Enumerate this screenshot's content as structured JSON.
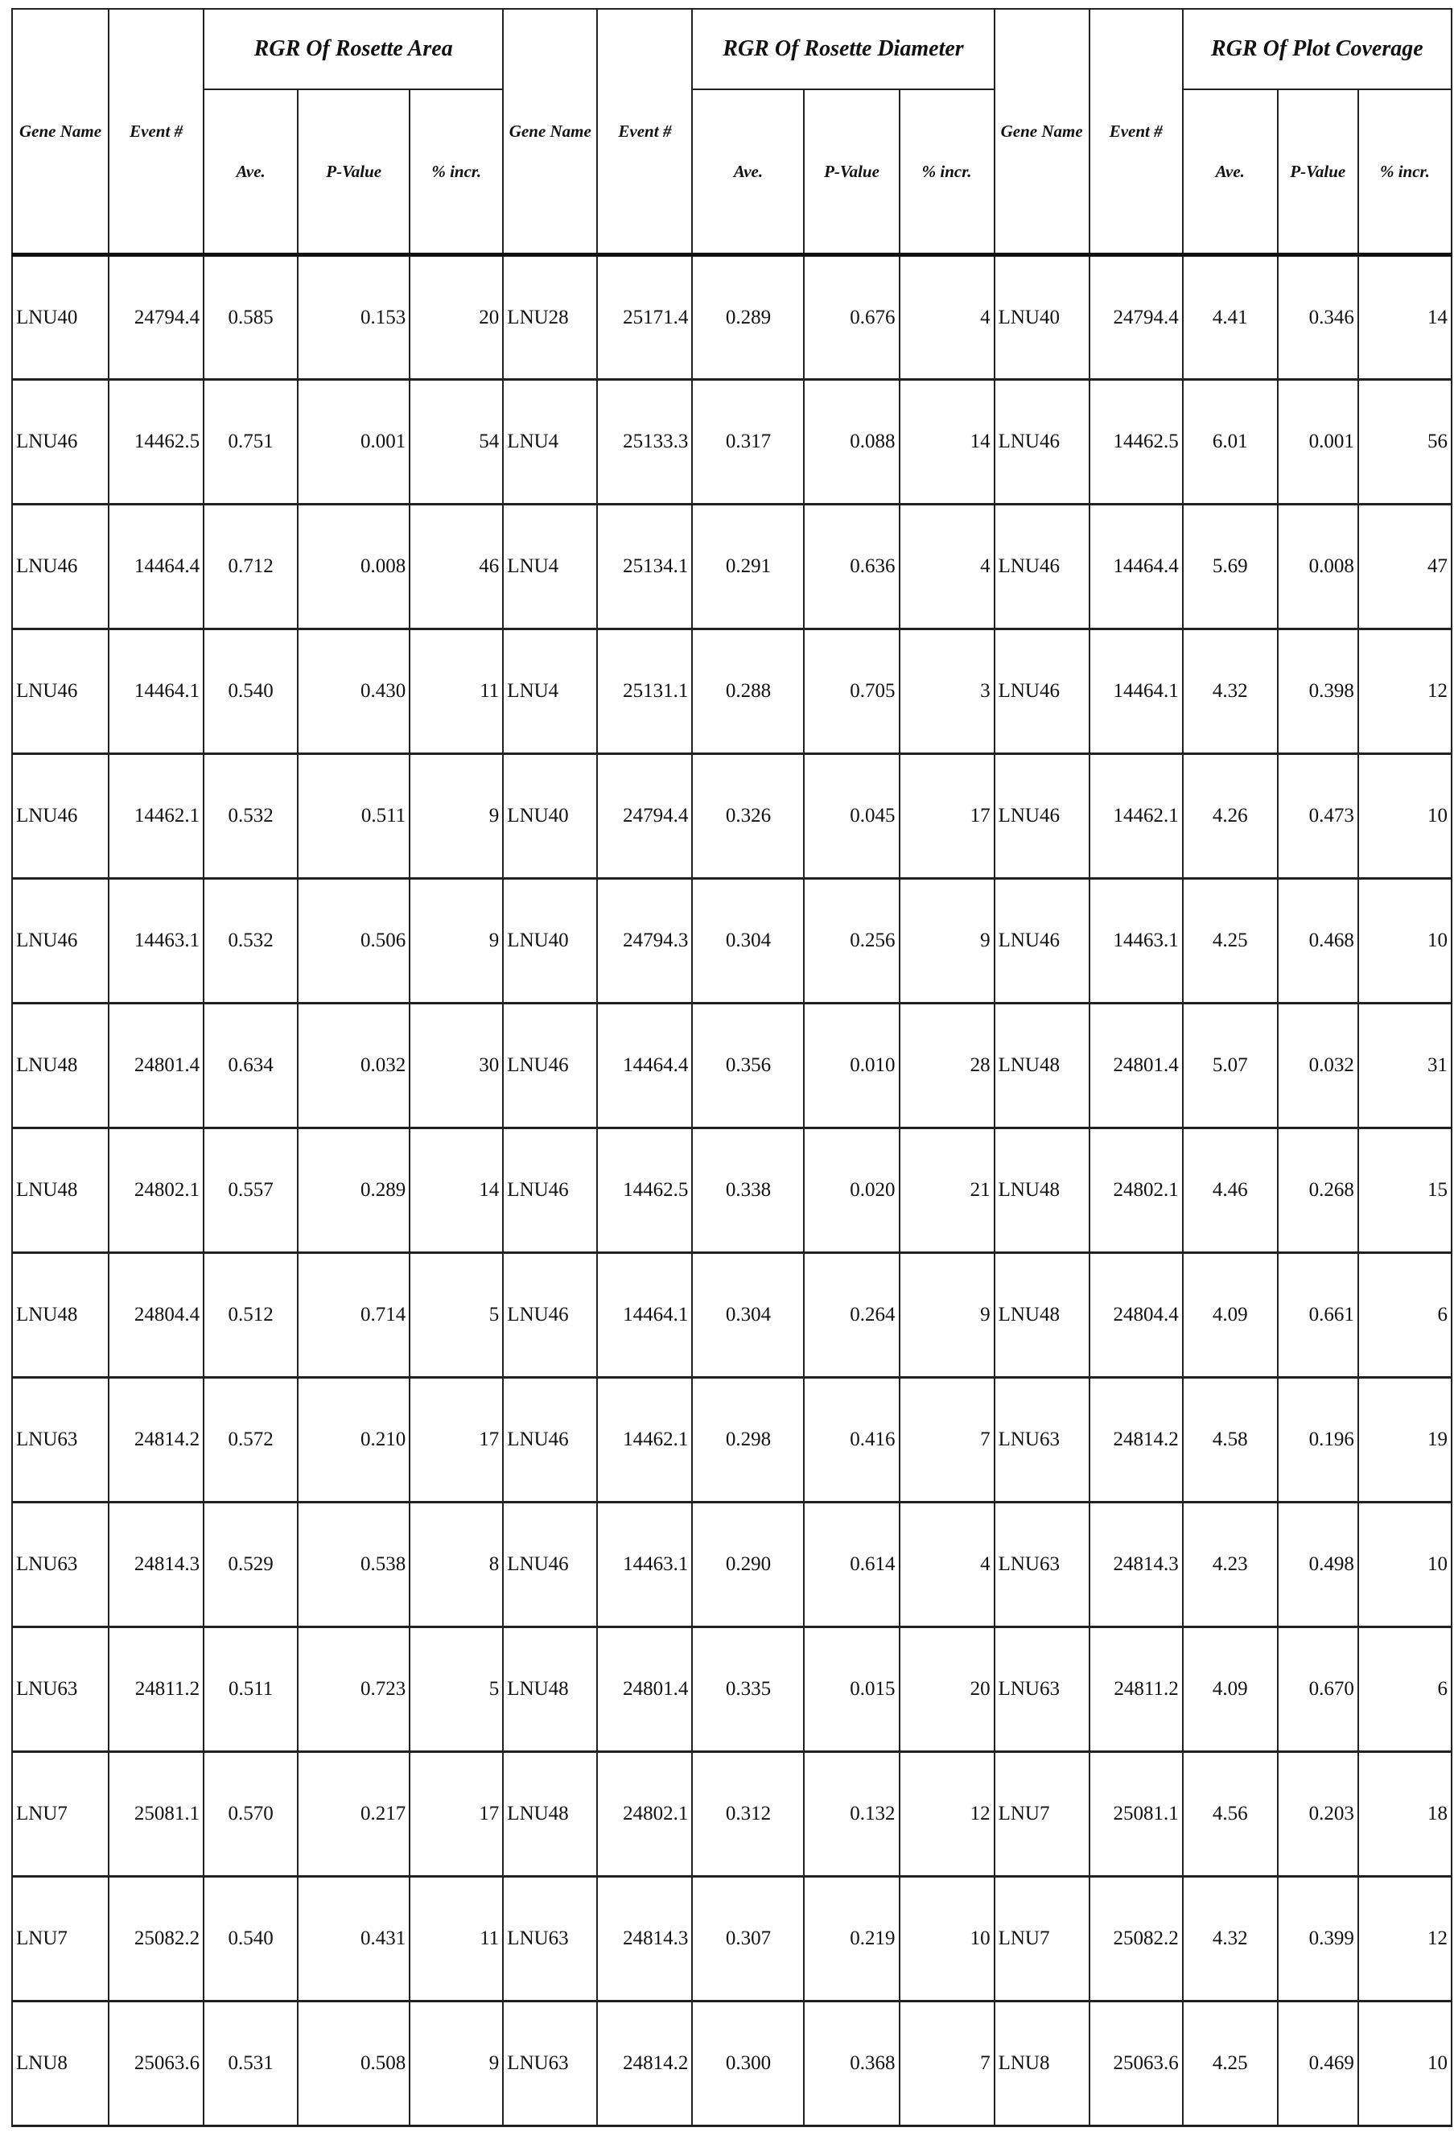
{
  "headers": {
    "gene_name": "Gene Name",
    "event": "Event #",
    "groups": [
      "RGR Of Rosette Area",
      "RGR Of Rosette Diameter",
      "RGR Of Plot Coverage"
    ],
    "sub": [
      {
        "ave": "Ave.",
        "pvalue": "P-Value",
        "incr": "% incr."
      },
      {
        "ave": "Ave.",
        "pvalue": "P-Value",
        "incr": "% incr."
      },
      {
        "ave": "Ave.",
        "pvalue": "P-Value",
        "incr": "% incr."
      }
    ]
  },
  "rows": [
    [
      [
        "LNU40",
        "24794.4",
        "0.585",
        "0.153",
        "20"
      ],
      [
        "LNU28",
        "25171.4",
        "0.289",
        "0.676",
        "4"
      ],
      [
        "LNU40",
        "24794.4",
        "4.41",
        "0.346",
        "14"
      ]
    ],
    [
      [
        "LNU46",
        "14462.5",
        "0.751",
        "0.001",
        "54"
      ],
      [
        "LNU4",
        "25133.3",
        "0.317",
        "0.088",
        "14"
      ],
      [
        "LNU46",
        "14462.5",
        "6.01",
        "0.001",
        "56"
      ]
    ],
    [
      [
        "LNU46",
        "14464.4",
        "0.712",
        "0.008",
        "46"
      ],
      [
        "LNU4",
        "25134.1",
        "0.291",
        "0.636",
        "4"
      ],
      [
        "LNU46",
        "14464.4",
        "5.69",
        "0.008",
        "47"
      ]
    ],
    [
      [
        "LNU46",
        "14464.1",
        "0.540",
        "0.430",
        "11"
      ],
      [
        "LNU4",
        "25131.1",
        "0.288",
        "0.705",
        "3"
      ],
      [
        "LNU46",
        "14464.1",
        "4.32",
        "0.398",
        "12"
      ]
    ],
    [
      [
        "LNU46",
        "14462.1",
        "0.532",
        "0.511",
        "9"
      ],
      [
        "LNU40",
        "24794.4",
        "0.326",
        "0.045",
        "17"
      ],
      [
        "LNU46",
        "14462.1",
        "4.26",
        "0.473",
        "10"
      ]
    ],
    [
      [
        "LNU46",
        "14463.1",
        "0.532",
        "0.506",
        "9"
      ],
      [
        "LNU40",
        "24794.3",
        "0.304",
        "0.256",
        "9"
      ],
      [
        "LNU46",
        "14463.1",
        "4.25",
        "0.468",
        "10"
      ]
    ],
    [
      [
        "LNU48",
        "24801.4",
        "0.634",
        "0.032",
        "30"
      ],
      [
        "LNU46",
        "14464.4",
        "0.356",
        "0.010",
        "28"
      ],
      [
        "LNU48",
        "24801.4",
        "5.07",
        "0.032",
        "31"
      ]
    ],
    [
      [
        "LNU48",
        "24802.1",
        "0.557",
        "0.289",
        "14"
      ],
      [
        "LNU46",
        "14462.5",
        "0.338",
        "0.020",
        "21"
      ],
      [
        "LNU48",
        "24802.1",
        "4.46",
        "0.268",
        "15"
      ]
    ],
    [
      [
        "LNU48",
        "24804.4",
        "0.512",
        "0.714",
        "5"
      ],
      [
        "LNU46",
        "14464.1",
        "0.304",
        "0.264",
        "9"
      ],
      [
        "LNU48",
        "24804.4",
        "4.09",
        "0.661",
        "6"
      ]
    ],
    [
      [
        "LNU63",
        "24814.2",
        "0.572",
        "0.210",
        "17"
      ],
      [
        "LNU46",
        "14462.1",
        "0.298",
        "0.416",
        "7"
      ],
      [
        "LNU63",
        "24814.2",
        "4.58",
        "0.196",
        "19"
      ]
    ],
    [
      [
        "LNU63",
        "24814.3",
        "0.529",
        "0.538",
        "8"
      ],
      [
        "LNU46",
        "14463.1",
        "0.290",
        "0.614",
        "4"
      ],
      [
        "LNU63",
        "24814.3",
        "4.23",
        "0.498",
        "10"
      ]
    ],
    [
      [
        "LNU63",
        "24811.2",
        "0.511",
        "0.723",
        "5"
      ],
      [
        "LNU48",
        "24801.4",
        "0.335",
        "0.015",
        "20"
      ],
      [
        "LNU63",
        "24811.2",
        "4.09",
        "0.670",
        "6"
      ]
    ],
    [
      [
        "LNU7",
        "25081.1",
        "0.570",
        "0.217",
        "17"
      ],
      [
        "LNU48",
        "24802.1",
        "0.312",
        "0.132",
        "12"
      ],
      [
        "LNU7",
        "25081.1",
        "4.56",
        "0.203",
        "18"
      ]
    ],
    [
      [
        "LNU7",
        "25082.2",
        "0.540",
        "0.431",
        "11"
      ],
      [
        "LNU63",
        "24814.3",
        "0.307",
        "0.219",
        "10"
      ],
      [
        "LNU7",
        "25082.2",
        "4.32",
        "0.399",
        "12"
      ]
    ],
    [
      [
        "LNU8",
        "25063.6",
        "0.531",
        "0.508",
        "9"
      ],
      [
        "LNU63",
        "24814.2",
        "0.300",
        "0.368",
        "7"
      ],
      [
        "LNU8",
        "25063.6",
        "4.25",
        "0.469",
        "10"
      ]
    ]
  ]
}
